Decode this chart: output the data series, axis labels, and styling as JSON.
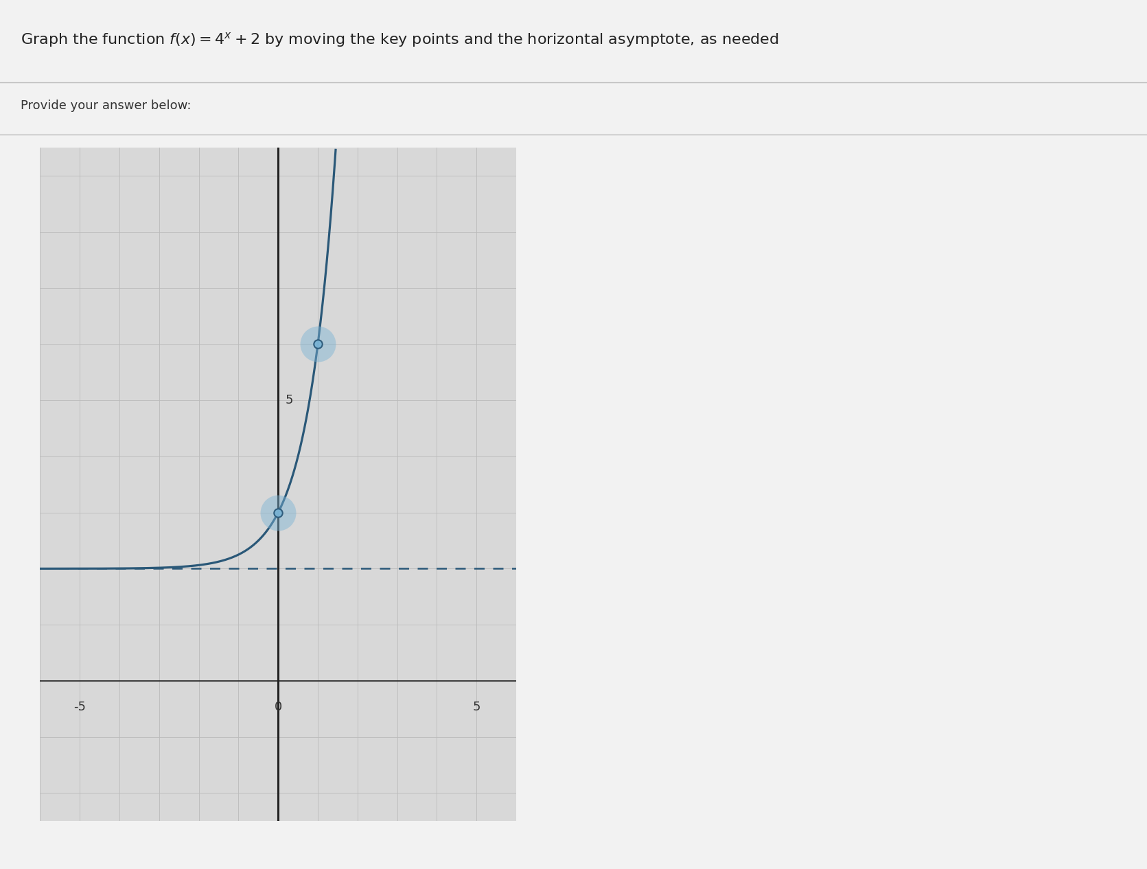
{
  "title_text": "Graph the function $f(x) = 4^x + 2$ by moving the key points and the horizontal asymptote, as needed",
  "title_plain": "Graph the function f(x) = 4",
  "subtitle_text": "Provide your answer below:",
  "func_base": 4,
  "func_shift": 2,
  "x_range": [
    -6,
    6
  ],
  "y_range": [
    -2.5,
    9.5
  ],
  "x_axis_y": 0,
  "y_axis_x": 0,
  "asymptote_y": 2,
  "key_points": [
    [
      0,
      3
    ],
    [
      1,
      6
    ]
  ],
  "curve_color": "#2a5878",
  "asymptote_color": "#2a5878",
  "point_fill_color": "#7ab3d4",
  "point_alpha": 0.45,
  "line_width": 2.3,
  "asymptote_linewidth": 1.8,
  "grid_color": "#bbbbbb",
  "grid_linewidth": 0.6,
  "panel_bg": "#d8d8d8",
  "header_bg": "#f5f5f5",
  "axis_color": "#222222",
  "title_fontsize": 16,
  "subtitle_fontsize": 13,
  "tick_fontsize": 13,
  "outer_bg": "#f2f2f2",
  "x_tick_labels": [
    [
      -5,
      "-5"
    ],
    [
      0,
      "0"
    ],
    [
      5,
      "5"
    ]
  ],
  "y_tick_labels": [
    [
      5,
      "5"
    ]
  ]
}
